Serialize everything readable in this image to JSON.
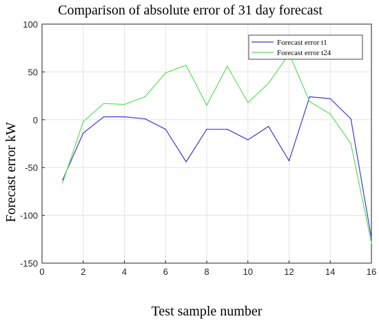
{
  "chart_data": {
    "type": "line",
    "title": "Comparison of absolute error of 31 day forecast",
    "xlabel": "Test sample number",
    "ylabel": "Forecast error   kW",
    "xlim": [
      0,
      16
    ],
    "ylim": [
      -150,
      100
    ],
    "xticks": [
      0,
      2,
      4,
      6,
      8,
      10,
      12,
      14,
      16
    ],
    "yticks": [
      -150,
      -100,
      -50,
      0,
      50,
      100
    ],
    "grid": true,
    "legend_position": "top-right",
    "x": [
      1,
      2,
      3,
      4,
      5,
      6,
      7,
      8,
      9,
      10,
      11,
      12,
      13,
      14,
      15,
      16
    ],
    "series": [
      {
        "name": "Forecast error t1",
        "color": "#3b3bd6",
        "values": [
          -63,
          -14,
          3,
          3,
          1,
          -10,
          -44,
          -10,
          -10,
          -21,
          -7,
          -43,
          24,
          22,
          1,
          -124
        ]
      },
      {
        "name": "Forecast error t24",
        "color": "#5be05b",
        "values": [
          -66,
          -2,
          17,
          16,
          24,
          49,
          57,
          15,
          56,
          18,
          38,
          69,
          19,
          6,
          -25,
          -129
        ]
      }
    ]
  }
}
